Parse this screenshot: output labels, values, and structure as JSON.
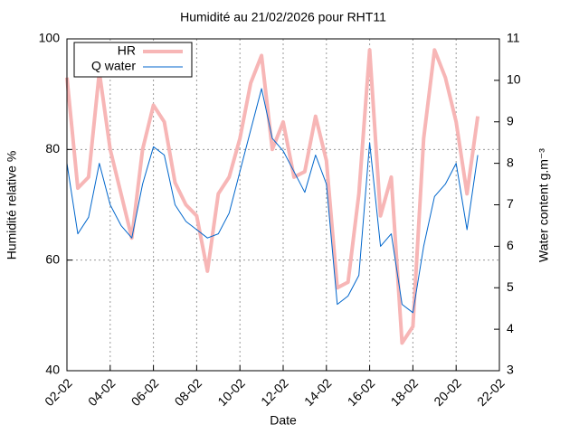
{
  "chart_data": {
    "type": "line",
    "title": "Humidité au 21/02/2026 pour RHT11",
    "xlabel": "Date",
    "ylabel": "Humidité relative %",
    "y2label": "Water content g.m⁻³",
    "x": [
      2,
      2.5,
      3,
      3.5,
      4,
      4.5,
      5,
      5.5,
      6,
      6.5,
      7,
      7.5,
      8,
      8.5,
      9,
      9.5,
      10,
      10.5,
      11,
      11.5,
      12,
      12.5,
      13,
      13.5,
      14,
      14.5,
      15,
      15.5,
      16,
      16.5,
      17,
      17.5,
      18,
      18.5,
      19,
      19.5,
      20,
      20.5,
      21
    ],
    "xlim": [
      2,
      22
    ],
    "xticks": [
      {
        "value": 2,
        "label": "02-02"
      },
      {
        "value": 4,
        "label": "04-02"
      },
      {
        "value": 6,
        "label": "06-02"
      },
      {
        "value": 8,
        "label": "08-02"
      },
      {
        "value": 10,
        "label": "10-02"
      },
      {
        "value": 12,
        "label": "12-02"
      },
      {
        "value": 14,
        "label": "14-02"
      },
      {
        "value": 16,
        "label": "16-02"
      },
      {
        "value": 18,
        "label": "18-02"
      },
      {
        "value": 20,
        "label": "20-02"
      },
      {
        "value": 22,
        "label": "22-02"
      }
    ],
    "ylim": [
      40,
      100
    ],
    "yticks": [
      40,
      60,
      80,
      100
    ],
    "y2lim": [
      3,
      11
    ],
    "y2ticks": [
      3,
      4,
      5,
      6,
      7,
      8,
      9,
      10,
      11
    ],
    "grid": true,
    "legend": "upper left",
    "series": [
      {
        "name": "HR",
        "color": "#f7b6b6",
        "values": [
          93,
          73,
          75,
          94,
          80,
          72,
          64,
          80,
          88,
          85,
          74,
          70,
          68,
          58,
          72,
          75,
          82,
          92,
          97,
          80,
          85,
          75,
          76,
          86,
          78,
          55,
          56,
          72,
          98,
          68,
          75,
          45,
          48,
          82,
          98,
          93,
          85,
          72,
          86
        ]
      },
      {
        "name": "Q water",
        "color": "#0066cc",
        "axis": "y2",
        "values": [
          8.0,
          6.3,
          6.7,
          8.0,
          7.0,
          6.5,
          6.2,
          7.5,
          8.4,
          8.2,
          7.0,
          6.6,
          6.4,
          6.2,
          6.3,
          6.8,
          7.8,
          8.8,
          9.8,
          8.6,
          8.3,
          7.8,
          7.3,
          8.2,
          7.5,
          4.6,
          4.8,
          5.3,
          8.5,
          6.0,
          6.3,
          4.6,
          4.4,
          6.0,
          7.2,
          7.5,
          8.0,
          6.4,
          8.2
        ]
      }
    ]
  }
}
